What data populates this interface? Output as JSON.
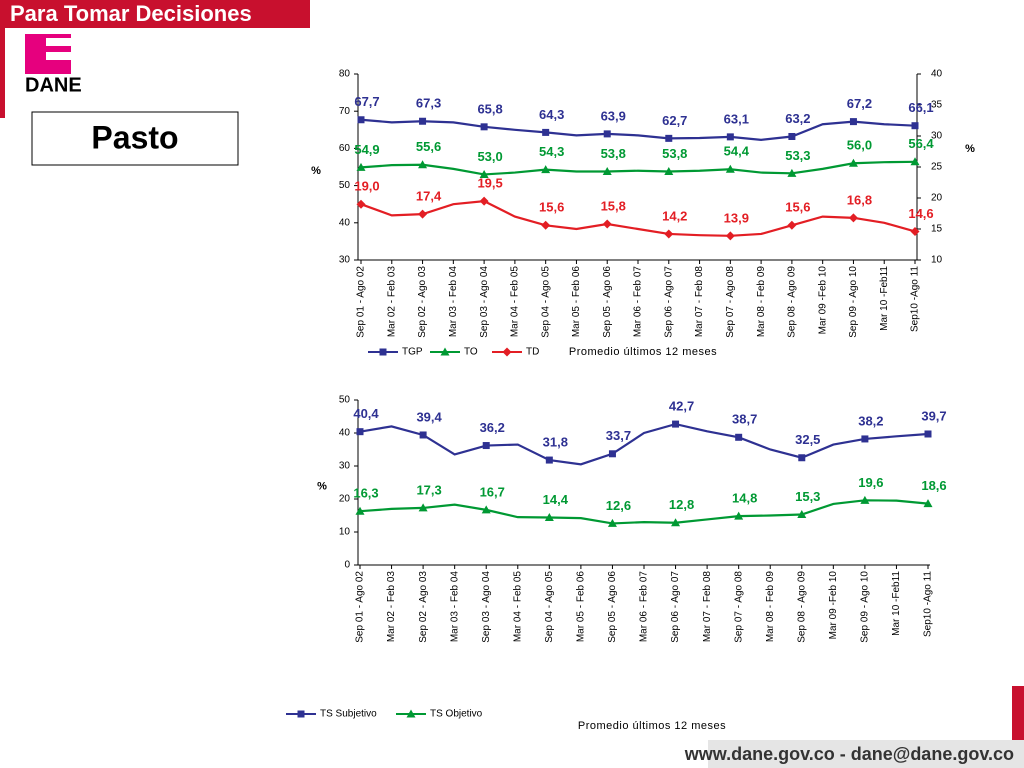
{
  "header": {
    "banner": "Para Tomar Decisiones",
    "logo": "DANE",
    "city": "Pasto"
  },
  "footer": {
    "text": "www.dane.gov.co - dane@dane.gov.co"
  },
  "chart_data": [
    {
      "type": "line",
      "x_label": "Promedio últimos 12 meses",
      "y_label": "%",
      "y2_label": "%",
      "categories": [
        "Sep 01 - Ago 02",
        "Mar 02 - Feb 03",
        "Sep 02 - Ago 03",
        "Mar 03 - Feb 04",
        "Sep 03 - Ago 04",
        "Mar 04 - Feb 05",
        "Sep 04 - Ago 05",
        "Mar 05 - Feb 06",
        "Sep 05 - Ago 06",
        "Mar 06 - Feb 07",
        "Sep 06 - Ago 07",
        "Mar 07 - Feb 08",
        "Sep 07 - Ago 08",
        "Mar 08 - Feb 09",
        "Sep 08 - Ago 09",
        "Mar 09 -Feb 10",
        "Sep 09 - Ago 10",
        "Mar 10 -Feb11",
        "Sep10 -Ago 11"
      ],
      "ylim": [
        30,
        80
      ],
      "yticks": [
        30,
        40,
        50,
        60,
        70,
        80
      ],
      "y2lim": [
        10,
        40
      ],
      "y2ticks": [
        10,
        15,
        20,
        25,
        30,
        35,
        40
      ],
      "series": [
        {
          "name": "TGP",
          "color": "#2e3192",
          "marker": "square",
          "values": [
            67.7,
            67,
            67.3,
            67,
            65.8,
            65,
            64.3,
            63.5,
            63.9,
            63.5,
            62.7,
            62.8,
            63.1,
            62.3,
            63.2,
            66.5,
            67.2,
            66.5,
            66.1
          ],
          "value_labels": [
            "67,7",
            null,
            "67,3",
            null,
            "65,8",
            null,
            "64,3",
            null,
            "63,9",
            null,
            "62,7",
            null,
            "63,1",
            null,
            "63,2",
            null,
            "67,2",
            null,
            "66,1"
          ]
        },
        {
          "name": "TO",
          "color": "#009933",
          "marker": "triangle",
          "values": [
            54.9,
            55.5,
            55.6,
            54.5,
            53.0,
            53.5,
            54.3,
            53.8,
            53.8,
            54.0,
            53.8,
            54.0,
            54.4,
            53.5,
            53.3,
            54.5,
            56.0,
            56.3,
            56.4
          ],
          "value_labels": [
            "54,9",
            null,
            "55,6",
            null,
            "53,0",
            null,
            "54,3",
            null,
            "53,8",
            null,
            "53,8",
            null,
            "54,4",
            null,
            "53,3",
            null,
            "56,0",
            null,
            "56,4"
          ]
        },
        {
          "name": "TD",
          "color": "#e31e24",
          "marker": "diamond",
          "axis": "y2",
          "values": [
            19.0,
            17.2,
            17.4,
            19.0,
            19.5,
            17.0,
            15.6,
            15.0,
            15.8,
            15.0,
            14.2,
            14.0,
            13.9,
            14.2,
            15.6,
            17.0,
            16.8,
            16.0,
            14.6
          ],
          "value_labels": [
            "19,0",
            null,
            "17,4",
            null,
            "19,5",
            null,
            "15,6",
            null,
            "15,8",
            null,
            "14,2",
            null,
            "13,9",
            null,
            "15,6",
            null,
            "16,8",
            null,
            "14,6"
          ]
        }
      ]
    },
    {
      "type": "line",
      "x_label": "Promedio últimos 12 meses",
      "y_label": "%",
      "categories": [
        "Sep 01 - Ago 02",
        "Mar 02 - Feb 03",
        "Sep 02 - Ago 03",
        "Mar 03 - Feb 04",
        "Sep 03 - Ago 04",
        "Mar 04 - Feb 05",
        "Sep 04 - Ago 05",
        "Mar 05 - Feb 06",
        "Sep 05 - Ago 06",
        "Mar 06 - Feb 07",
        "Sep 06 - Ago 07",
        "Mar 07 - Feb 08",
        "Sep 07 - Ago 08",
        "Mar 08 - Feb 09",
        "Sep 08 - Ago 09",
        "Mar 09 -Feb 10",
        "Sep 09 - Ago 10",
        "Mar 10 -Feb11",
        "Sep10 -Ago 11"
      ],
      "ylim": [
        0,
        50
      ],
      "yticks": [
        0,
        10,
        20,
        30,
        40,
        50
      ],
      "series": [
        {
          "name": "TS Subjetivo",
          "color": "#2e3192",
          "marker": "square",
          "values": [
            40.4,
            42,
            39.4,
            33.5,
            36.2,
            36.5,
            31.8,
            30.5,
            33.7,
            40,
            42.7,
            40.5,
            38.7,
            35,
            32.5,
            36.5,
            38.2,
            39,
            39.7
          ],
          "value_labels": [
            "40,4",
            null,
            "39,4",
            null,
            "36,2",
            null,
            "31,8",
            null,
            "33,7",
            null,
            "42,7",
            null,
            "38,7",
            null,
            "32,5",
            null,
            "38,2",
            null,
            "39,7"
          ]
        },
        {
          "name": "TS Objetivo",
          "color": "#009933",
          "marker": "triangle",
          "values": [
            16.3,
            17,
            17.3,
            18.3,
            16.7,
            14.5,
            14.4,
            14.2,
            12.6,
            13,
            12.8,
            13.8,
            14.8,
            15,
            15.3,
            18.5,
            19.6,
            19.5,
            18.6
          ],
          "value_labels": [
            "16,3",
            null,
            "17,3",
            null,
            "16,7",
            null,
            "14,4",
            null,
            "12,6",
            null,
            "12,8",
            null,
            "14,8",
            null,
            "15,3",
            null,
            "19,6",
            null,
            "18,6"
          ]
        }
      ]
    }
  ]
}
